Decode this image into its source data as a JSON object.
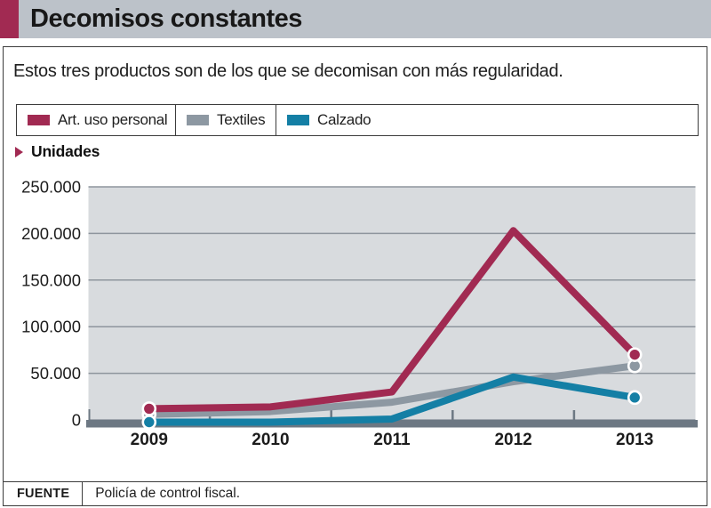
{
  "header": {
    "title": "Decomisos constantes",
    "accent_color": "#a12a52",
    "bar_color": "#bcc2c9"
  },
  "chart_data": {
    "type": "line",
    "title": "Decomisos constantes",
    "subtitle": "Estos tres productos son de los que se decomisan con más regularidad.",
    "ylabel": "Unidades",
    "xlabel": "",
    "categories": [
      "2009",
      "2010",
      "2011",
      "2012",
      "2013"
    ],
    "series": [
      {
        "name": "Art. uso personal",
        "color": "#a12a52",
        "values": [
          12000,
          14000,
          30000,
          203000,
          70000
        ]
      },
      {
        "name": "Textiles",
        "color": "#8d98a2",
        "values": [
          6000,
          9000,
          19000,
          41000,
          58000
        ]
      },
      {
        "name": "Calzado",
        "color": "#147fa5",
        "values": [
          0,
          0,
          1000,
          46000,
          24000
        ]
      }
    ],
    "ylim": [
      0,
      250000
    ],
    "ytick_step": 50000,
    "ytick_labels": [
      "0",
      "50.000",
      "100.000",
      "150.000",
      "200.000",
      "250.000"
    ],
    "grid": true,
    "legend_position": "top",
    "markers": "endpoints"
  },
  "colors": {
    "plot_background": "#d8dbde",
    "gridline": "#8e959d",
    "baseline": "#6d7883",
    "tick": "#6d7883",
    "axis_text": "#1c1c1c",
    "panel_border": "#3c3c3c"
  },
  "footer": {
    "source_label": "FUENTE",
    "source_text": "Policía de control fiscal."
  }
}
